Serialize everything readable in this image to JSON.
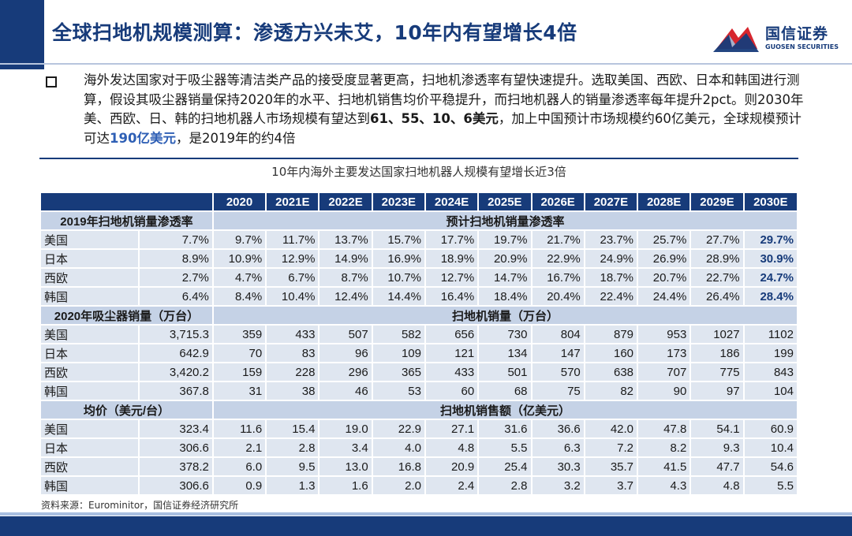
{
  "header": {
    "title": "全球扫地机规模测算：渗透方兴未艾，10年内有望增长4倍",
    "logo_cn": "国信证券",
    "logo_en": "GUOSEN SECURITIES"
  },
  "summary": {
    "text_1": "海外发达国家对于吸尘器等清洁类产品的接受度显著更高，扫地机渗透率有望快速提升。选取美国、西欧、日本和韩国进行测算，假设其吸尘器销量保持2020年的水平、扫地机销售均价平稳提升，而扫地机器人的销量渗透率每年提升2pct。则2030年美、西欧、日、韩的扫地机器人市场规模有望达到",
    "highlight_1": "61、55、10、6美元",
    "text_2": "，加上中国预计市场规模约60亿美元，全球规模预计可达",
    "highlight_2": "190亿美元",
    "text_3": "，是2019年的约4倍"
  },
  "table": {
    "title": "10年内海外主要发达国家扫地机器人规模有望增长近3倍",
    "years": [
      "2020",
      "2021E",
      "2022E",
      "2023E",
      "2024E",
      "2025E",
      "2026E",
      "2027E",
      "2028E",
      "2029E",
      "2030E"
    ],
    "sections": [
      {
        "left_header": "2019年扫地机销量渗透率",
        "right_header": "预计扫地机销量渗透率",
        "rows": [
          {
            "label": "美国",
            "base": "7.7%",
            "values": [
              "9.7%",
              "11.7%",
              "13.7%",
              "15.7%",
              "17.7%",
              "19.7%",
              "21.7%",
              "23.7%",
              "25.7%",
              "27.7%",
              "29.7%"
            ]
          },
          {
            "label": "日本",
            "base": "8.9%",
            "values": [
              "10.9%",
              "12.9%",
              "14.9%",
              "16.9%",
              "18.9%",
              "20.9%",
              "22.9%",
              "24.9%",
              "26.9%",
              "28.9%",
              "30.9%"
            ]
          },
          {
            "label": "西欧",
            "base": "2.7%",
            "values": [
              "4.7%",
              "6.7%",
              "8.7%",
              "10.7%",
              "12.7%",
              "14.7%",
              "16.7%",
              "18.7%",
              "20.7%",
              "22.7%",
              "24.7%"
            ]
          },
          {
            "label": "韩国",
            "base": "6.4%",
            "values": [
              "8.4%",
              "10.4%",
              "12.4%",
              "14.4%",
              "16.4%",
              "18.4%",
              "20.4%",
              "22.4%",
              "24.4%",
              "26.4%",
              "28.4%"
            ]
          }
        ]
      },
      {
        "left_header": "2020年吸尘器销量（万台）",
        "right_header": "扫地机销量（万台）",
        "rows": [
          {
            "label": "美国",
            "base": "3,715.3",
            "values": [
              "359",
              "433",
              "507",
              "582",
              "656",
              "730",
              "804",
              "879",
              "953",
              "1027",
              "1102"
            ]
          },
          {
            "label": "日本",
            "base": "642.9",
            "values": [
              "70",
              "83",
              "96",
              "109",
              "121",
              "134",
              "147",
              "160",
              "173",
              "186",
              "199"
            ]
          },
          {
            "label": "西欧",
            "base": "3,420.2",
            "values": [
              "159",
              "228",
              "296",
              "365",
              "433",
              "501",
              "570",
              "638",
              "707",
              "775",
              "843"
            ]
          },
          {
            "label": "韩国",
            "base": "367.8",
            "values": [
              "31",
              "38",
              "46",
              "53",
              "60",
              "68",
              "75",
              "82",
              "90",
              "97",
              "104"
            ]
          }
        ]
      },
      {
        "left_header": "均价（美元/台）",
        "right_header": "扫地机销售额（亿美元）",
        "rows": [
          {
            "label": "美国",
            "base": "323.4",
            "values": [
              "11.6",
              "15.4",
              "19.0",
              "22.9",
              "27.1",
              "31.6",
              "36.6",
              "42.0",
              "47.8",
              "54.1",
              "60.9"
            ]
          },
          {
            "label": "日本",
            "base": "306.6",
            "values": [
              "2.1",
              "2.8",
              "3.4",
              "4.0",
              "4.8",
              "5.5",
              "6.3",
              "7.2",
              "8.2",
              "9.3",
              "10.4"
            ]
          },
          {
            "label": "西欧",
            "base": "378.2",
            "values": [
              "6.0",
              "9.5",
              "13.0",
              "16.8",
              "20.9",
              "25.4",
              "30.3",
              "35.7",
              "41.5",
              "47.7",
              "54.6"
            ]
          },
          {
            "label": "韩国",
            "base": "306.6",
            "values": [
              "0.9",
              "1.3",
              "1.6",
              "2.0",
              "2.4",
              "2.8",
              "3.2",
              "3.7",
              "4.3",
              "4.8",
              "5.5"
            ]
          }
        ]
      }
    ]
  },
  "source": "资料来源：Eurominitor，国信证券经济研究所",
  "colors": {
    "brand_navy": "#173b7a",
    "highlight_blue": "#2e5fb5",
    "logo_red": "#d7262e",
    "row_bg": "#dfe6f0",
    "section_bg": "#c5d2e6"
  }
}
